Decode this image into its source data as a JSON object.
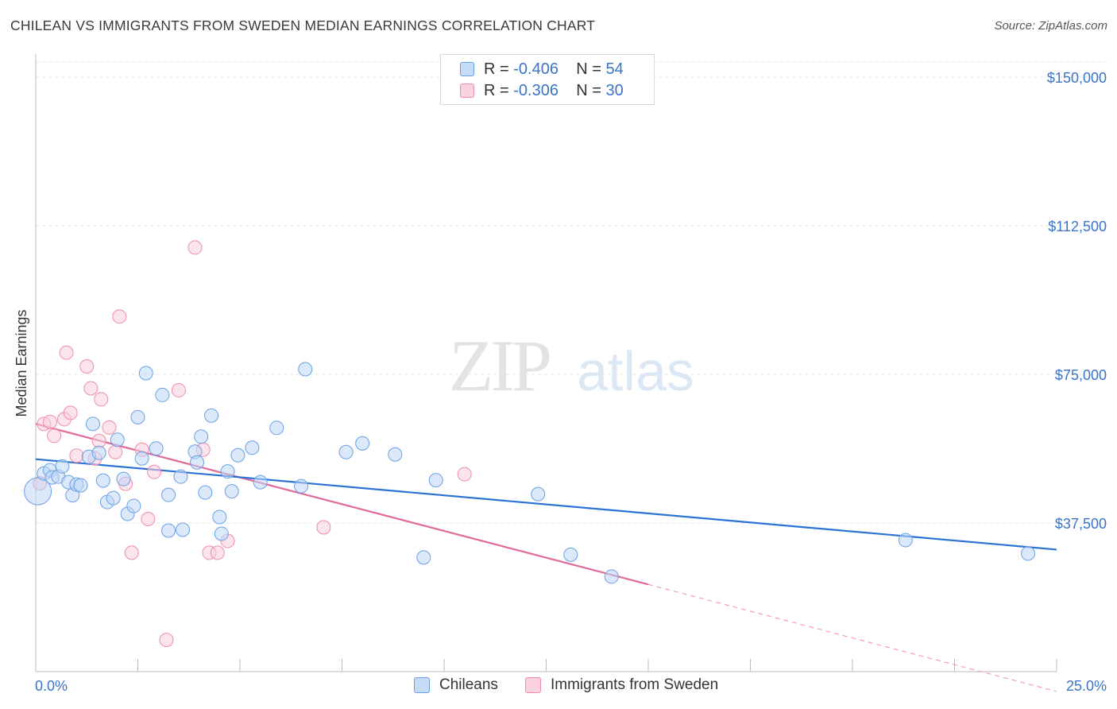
{
  "title": "CHILEAN VS IMMIGRANTS FROM SWEDEN MEDIAN EARNINGS CORRELATION CHART",
  "source": "Source: ZipAtlas.com",
  "watermark": {
    "zip": "ZIP",
    "atlas": "atlas"
  },
  "legend": {
    "rows": [
      {
        "r_label": "R =",
        "r_value": "-0.406",
        "n_label": "N =",
        "n_value": "54",
        "color": "#6aa0e6"
      },
      {
        "r_label": "R =",
        "r_value": "-0.306",
        "n_label": "N =",
        "n_value": "30",
        "color": "#f08cab"
      }
    ]
  },
  "bottom_legend": {
    "series1": "Chileans",
    "series2": "Immigrants from Sweden"
  },
  "chart_data": {
    "type": "scatter",
    "ylabel": "Median Earnings",
    "xlim": [
      0,
      25
    ],
    "ylim": [
      0,
      150000
    ],
    "x_tick_labels": [
      "0.0%",
      "25.0%"
    ],
    "y_ticks": [
      37500,
      75000,
      112500,
      150000
    ],
    "y_tick_labels": [
      "$37,500",
      "$75,000",
      "$112,500",
      "$150,000"
    ],
    "grid": true,
    "series": [
      {
        "name": "Chileans",
        "color": "#6aa0e6",
        "points": [
          [
            0.05,
            45500
          ],
          [
            0.2,
            50000
          ],
          [
            0.35,
            50800
          ],
          [
            0.4,
            49000
          ],
          [
            0.55,
            49200
          ],
          [
            0.65,
            51800
          ],
          [
            0.8,
            47800
          ],
          [
            0.9,
            44500
          ],
          [
            1.0,
            47200
          ],
          [
            1.1,
            47000
          ],
          [
            1.3,
            54200
          ],
          [
            1.4,
            62500
          ],
          [
            1.55,
            55200
          ],
          [
            1.65,
            48200
          ],
          [
            1.75,
            42800
          ],
          [
            1.9,
            43800
          ],
          [
            2.0,
            58500
          ],
          [
            2.15,
            48600
          ],
          [
            2.25,
            39800
          ],
          [
            2.4,
            41800
          ],
          [
            2.5,
            64200
          ],
          [
            2.6,
            53800
          ],
          [
            2.7,
            75300
          ],
          [
            2.95,
            56300
          ],
          [
            3.1,
            69800
          ],
          [
            3.25,
            35600
          ],
          [
            3.25,
            44600
          ],
          [
            3.6,
            35800
          ],
          [
            3.55,
            49200
          ],
          [
            3.9,
            55500
          ],
          [
            3.95,
            52800
          ],
          [
            4.05,
            59300
          ],
          [
            4.15,
            45200
          ],
          [
            4.3,
            64600
          ],
          [
            4.5,
            39000
          ],
          [
            4.55,
            34800
          ],
          [
            4.7,
            50500
          ],
          [
            4.8,
            45500
          ],
          [
            4.95,
            54600
          ],
          [
            5.3,
            56500
          ],
          [
            5.5,
            47800
          ],
          [
            5.9,
            61500
          ],
          [
            6.5,
            46800
          ],
          [
            6.6,
            76300
          ],
          [
            7.6,
            55400
          ],
          [
            8.0,
            57600
          ],
          [
            8.8,
            54800
          ],
          [
            9.5,
            28800
          ],
          [
            9.8,
            48300
          ],
          [
            12.3,
            44800
          ],
          [
            13.1,
            29500
          ],
          [
            14.1,
            24000
          ],
          [
            21.3,
            33200
          ],
          [
            24.3,
            29800
          ]
        ],
        "trend": {
          "x": [
            0,
            25
          ],
          "y": [
            53600,
            30800
          ]
        }
      },
      {
        "name": "Immigrants from Sweden",
        "color": "#f08cab",
        "points": [
          [
            0.1,
            47500
          ],
          [
            0.2,
            62500
          ],
          [
            0.35,
            63000
          ],
          [
            0.45,
            59500
          ],
          [
            0.7,
            63700
          ],
          [
            0.75,
            80500
          ],
          [
            0.85,
            65300
          ],
          [
            1.0,
            54500
          ],
          [
            1.25,
            77000
          ],
          [
            1.35,
            71500
          ],
          [
            1.45,
            53800
          ],
          [
            1.55,
            58200
          ],
          [
            1.6,
            68700
          ],
          [
            1.8,
            61600
          ],
          [
            1.95,
            55400
          ],
          [
            2.05,
            89600
          ],
          [
            2.2,
            47400
          ],
          [
            2.35,
            30000
          ],
          [
            2.6,
            56000
          ],
          [
            2.75,
            38500
          ],
          [
            2.9,
            50400
          ],
          [
            3.2,
            8000
          ],
          [
            3.5,
            71000
          ],
          [
            3.9,
            107000
          ],
          [
            4.1,
            56000
          ],
          [
            4.25,
            30000
          ],
          [
            4.45,
            30000
          ],
          [
            4.7,
            33000
          ],
          [
            7.05,
            36400
          ],
          [
            10.5,
            49800
          ]
        ],
        "trend": {
          "x": [
            0,
            15
          ],
          "y": [
            62500,
            22000
          ]
        },
        "trend_dashed_extension": {
          "x": [
            15,
            25
          ],
          "y": [
            22000,
            -5000
          ]
        }
      }
    ]
  }
}
